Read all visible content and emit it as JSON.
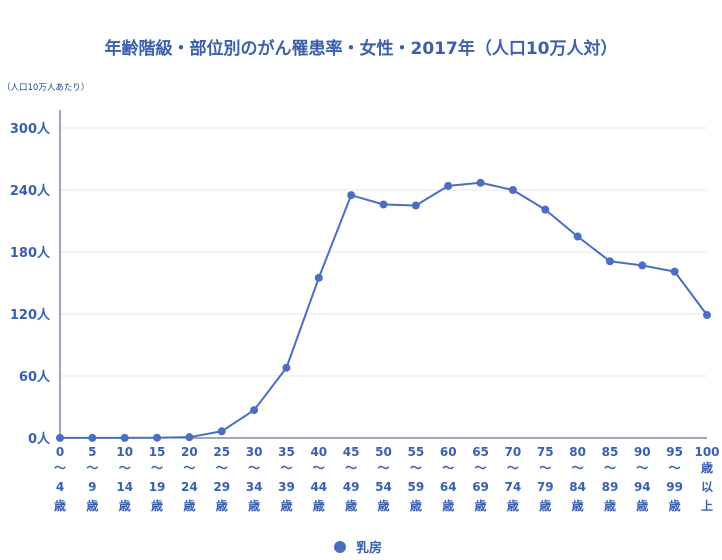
{
  "title": "年齢階級・部位別のがん罹患率・女性・2017年（人口10万人対）",
  "unit_note": "（人口10万人あたり）",
  "colors": {
    "series": "#4a6fc0",
    "text": "#3a5fb0",
    "grid": "#e3e7f3"
  },
  "chart_data": {
    "type": "line",
    "categories": [
      [
        "0",
        "〜",
        "4",
        "歳"
      ],
      [
        "5",
        "〜",
        "9",
        "歳"
      ],
      [
        "10",
        "〜",
        "14",
        "歳"
      ],
      [
        "15",
        "〜",
        "19",
        "歳"
      ],
      [
        "20",
        "〜",
        "24",
        "歳"
      ],
      [
        "25",
        "〜",
        "29",
        "歳"
      ],
      [
        "30",
        "〜",
        "34",
        "歳"
      ],
      [
        "35",
        "〜",
        "39",
        "歳"
      ],
      [
        "40",
        "〜",
        "44",
        "歳"
      ],
      [
        "45",
        "〜",
        "49",
        "歳"
      ],
      [
        "50",
        "〜",
        "54",
        "歳"
      ],
      [
        "55",
        "〜",
        "59",
        "歳"
      ],
      [
        "60",
        "〜",
        "64",
        "歳"
      ],
      [
        "65",
        "〜",
        "69",
        "歳"
      ],
      [
        "70",
        "〜",
        "74",
        "歳"
      ],
      [
        "75",
        "〜",
        "79",
        "歳"
      ],
      [
        "80",
        "〜",
        "84",
        "歳"
      ],
      [
        "85",
        "〜",
        "89",
        "歳"
      ],
      [
        "90",
        "〜",
        "94",
        "歳"
      ],
      [
        "95",
        "〜",
        "99",
        "歳"
      ],
      [
        "100",
        "歳",
        "以",
        "上"
      ]
    ],
    "series": [
      {
        "name": "乳房",
        "values": [
          0.1,
          0.1,
          0.1,
          0.3,
          0.8,
          6.5,
          27,
          68,
          155,
          235,
          226,
          225,
          244,
          247,
          240,
          221,
          195,
          171,
          167,
          161,
          119
        ]
      }
    ],
    "ylim": [
      0,
      300
    ],
    "yticks": [
      "0人",
      "60人",
      "120人",
      "180人",
      "240人",
      "300人"
    ],
    "ytick_values": [
      0,
      60,
      120,
      180,
      240,
      300
    ],
    "grid": true,
    "legend": "bottom-center"
  }
}
